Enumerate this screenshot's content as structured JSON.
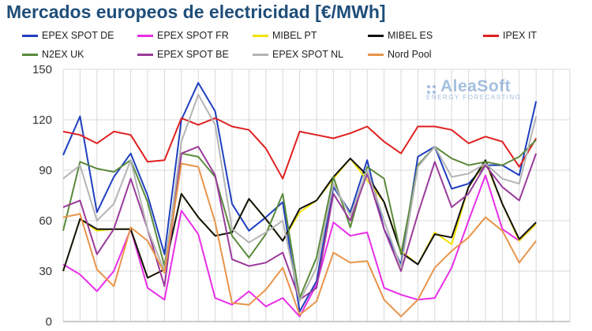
{
  "header": {
    "title": "Mercados europeos de electricidad [€/MWh]"
  },
  "watermark": {
    "brand": "AleaSoft",
    "tagline": "ENERGY FORECASTING"
  },
  "colors": {
    "grid": "#d9d9d9",
    "axis": "#999999"
  },
  "chart_data": {
    "type": "line",
    "title": "Mercados europeos de electricidad [€/MWh]",
    "xlabel": "",
    "ylabel": "",
    "ylim": [
      0,
      150
    ],
    "yticks": [
      0,
      30,
      60,
      90,
      120,
      150
    ],
    "grid": true,
    "legend_position": "top",
    "x": [
      1,
      2,
      3,
      4,
      5,
      6,
      7,
      8,
      9,
      10,
      11,
      12,
      13,
      14,
      15,
      16,
      17,
      18,
      19,
      20,
      21,
      22,
      23,
      24,
      25,
      26,
      27,
      28,
      29,
      30,
      31
    ],
    "series": [
      {
        "name": "EPEX SPOT DE",
        "color": "#1f3fbf",
        "values": [
          99,
          122,
          65,
          86,
          100,
          75,
          40,
          120,
          142,
          125,
          70,
          54,
          62,
          71,
          6,
          24,
          80,
          65,
          96,
          55,
          34,
          98,
          104,
          79,
          82,
          93,
          93,
          87,
          131,
          null,
          null
        ]
      },
      {
        "name": "EPEX SPOT FR",
        "color": "#e82ee8",
        "values": [
          34,
          28,
          18,
          30,
          55,
          20,
          13,
          66,
          52,
          14,
          10,
          18,
          9,
          14,
          3,
          22,
          59,
          51,
          53,
          20,
          16,
          13,
          14,
          32,
          60,
          87,
          55,
          48,
          58,
          null,
          null
        ]
      },
      {
        "name": "MIBEL PT",
        "color": "#f2e200",
        "values": [
          30,
          61,
          54,
          55,
          55,
          26,
          31,
          76,
          62,
          51,
          53,
          73,
          61,
          48,
          65,
          72,
          85,
          97,
          84,
          71,
          42,
          34,
          53,
          46,
          80,
          95,
          70,
          48,
          58,
          null,
          null
        ]
      },
      {
        "name": "MIBEL ES",
        "color": "#111111",
        "values": [
          30,
          61,
          55,
          55,
          55,
          26,
          31,
          76,
          62,
          51,
          53,
          73,
          61,
          48,
          67,
          72,
          86,
          97,
          87,
          71,
          41,
          34,
          52,
          50,
          80,
          96,
          70,
          49,
          59,
          null,
          null
        ]
      },
      {
        "name": "IPEX IT",
        "color": "#e02020",
        "values": [
          113,
          111,
          106,
          113,
          111,
          95,
          96,
          121,
          117,
          121,
          116,
          114,
          103,
          85,
          113,
          111,
          109,
          112,
          116,
          107,
          100,
          116,
          116,
          114,
          106,
          110,
          107,
          92,
          109,
          null,
          null
        ]
      },
      {
        "name": "N2EX UK",
        "color": "#5a8a3a",
        "values": [
          54,
          95,
          91,
          89,
          96,
          71,
          33,
          100,
          98,
          86,
          51,
          38,
          52,
          76,
          14,
          38,
          86,
          56,
          92,
          85,
          40,
          93,
          104,
          97,
          93,
          95,
          93,
          98,
          108,
          null,
          null
        ]
      },
      {
        "name": "EPEX SPOT BE",
        "color": "#9a3a9a",
        "values": [
          68,
          72,
          40,
          55,
          85,
          55,
          21,
          100,
          104,
          87,
          37,
          33,
          35,
          41,
          13,
          20,
          76,
          60,
          88,
          55,
          30,
          64,
          95,
          68,
          76,
          93,
          80,
          72,
          100,
          null,
          null
        ]
      },
      {
        "name": "EPEX SPOT NL",
        "color": "#b4b4b4",
        "values": [
          85,
          93,
          60,
          70,
          96,
          55,
          30,
          107,
          135,
          117,
          55,
          47,
          53,
          60,
          12,
          32,
          82,
          63,
          90,
          60,
          32,
          92,
          104,
          86,
          88,
          94,
          85,
          82,
          122,
          null,
          null
        ]
      },
      {
        "name": "Nord Pool",
        "color": "#e8944a",
        "values": [
          62,
          64,
          31,
          21,
          56,
          48,
          29,
          94,
          92,
          59,
          11,
          10,
          19,
          32,
          4,
          12,
          41,
          35,
          36,
          13,
          3,
          13,
          32,
          42,
          50,
          62,
          54,
          35,
          48,
          null,
          null
        ]
      }
    ]
  }
}
